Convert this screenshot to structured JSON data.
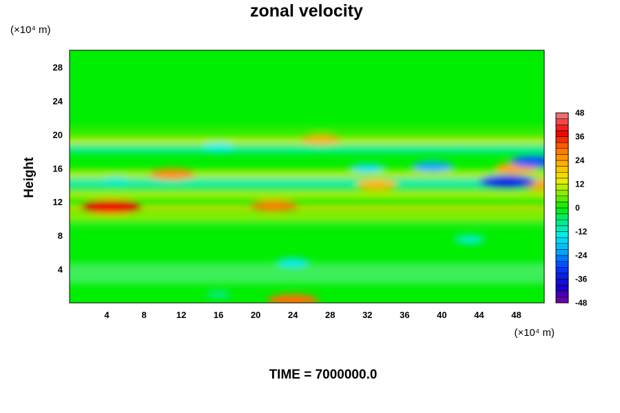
{
  "chart_data": {
    "type": "heatmap",
    "title": "zonal velocity",
    "xlabel": "",
    "ylabel": "Height",
    "x_unit": "(×10⁴ m)",
    "y_unit": "(×10⁴ m)",
    "xlim": [
      0,
      51
    ],
    "ylim": [
      0,
      30
    ],
    "x_ticks": [
      4,
      8,
      12,
      16,
      20,
      24,
      28,
      32,
      36,
      40,
      44,
      48
    ],
    "y_ticks": [
      4,
      8,
      12,
      16,
      20,
      24,
      28
    ],
    "colorbar": {
      "range": [
        -48,
        48
      ],
      "ticks": [
        48,
        36,
        24,
        12,
        0,
        -12,
        -24,
        -36,
        -48
      ],
      "step": 3
    },
    "features": [
      {
        "x": 4.5,
        "y": 11.4,
        "value": 38
      },
      {
        "x": 11,
        "y": 15.3,
        "value": 26
      },
      {
        "x": 22,
        "y": 11.5,
        "value": 28
      },
      {
        "x": 24,
        "y": 0.3,
        "value": 30
      },
      {
        "x": 27,
        "y": 19.4,
        "value": 22
      },
      {
        "x": 33,
        "y": 14,
        "value": 22
      },
      {
        "x": 48,
        "y": 16,
        "value": 24
      },
      {
        "x": 51,
        "y": 14,
        "value": 24
      },
      {
        "x": 47,
        "y": 14.4,
        "value": -34
      },
      {
        "x": 50,
        "y": 16.8,
        "value": -28
      },
      {
        "x": 39,
        "y": 16.2,
        "value": -22
      },
      {
        "x": 32,
        "y": 16,
        "value": -16
      },
      {
        "x": 16,
        "y": 18.5,
        "value": -14
      },
      {
        "x": 5,
        "y": 14.5,
        "value": -12
      },
      {
        "x": 24,
        "y": 4.8,
        "value": -15
      },
      {
        "x": 43,
        "y": 7.5,
        "value": -13
      },
      {
        "x": 16,
        "y": 1,
        "value": -8
      }
    ]
  },
  "footer": {
    "time_label": "TIME = 7000000.0"
  }
}
